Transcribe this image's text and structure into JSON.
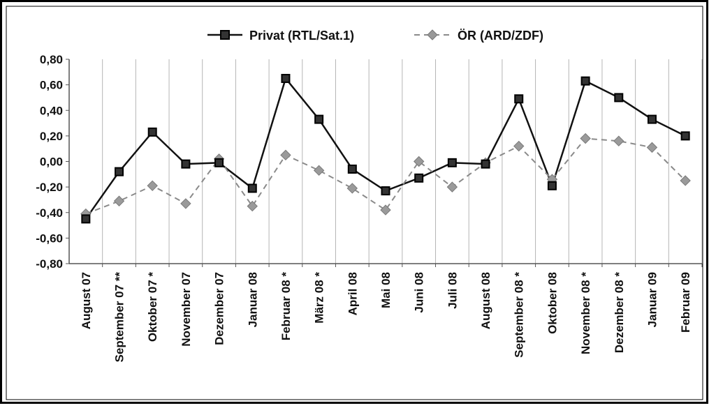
{
  "chart_data": {
    "type": "line",
    "categories": [
      "August 07",
      "September 07 **",
      "Oktober 07 *",
      "November 07",
      "Dezember 07",
      "Januar 08",
      "Februar 08 *",
      "März 08 *",
      "April 08",
      "Mai 08",
      "Juni 08",
      "Juli 08",
      "August 08",
      "September 08 *",
      "Oktober 08",
      "November 08 *",
      "Dezember 08 *",
      "Januar 09",
      "Februar 09"
    ],
    "series": [
      {
        "name": "Privat (RTL/Sat.1)",
        "color": "#111111",
        "style": "solid",
        "marker": "square",
        "values": [
          -0.45,
          -0.08,
          0.23,
          -0.02,
          -0.01,
          -0.21,
          0.65,
          0.33,
          -0.06,
          -0.23,
          -0.13,
          -0.01,
          -0.02,
          0.49,
          -0.19,
          0.63,
          0.5,
          0.33,
          0.2
        ]
      },
      {
        "name": "ÖR (ARD/ZDF)",
        "color": "#8a8a8a",
        "style": "dashed",
        "marker": "diamond",
        "values": [
          -0.41,
          -0.31,
          -0.19,
          -0.33,
          0.02,
          -0.35,
          0.05,
          -0.07,
          -0.21,
          -0.38,
          0.0,
          -0.2,
          -0.01,
          0.12,
          -0.14,
          0.18,
          0.16,
          0.11,
          -0.15
        ]
      }
    ],
    "yticks": [
      "0,80",
      "0,60",
      "0,40",
      "0,20",
      "0,00",
      "-0,20",
      "-0,40",
      "-0,60",
      "-0,80"
    ],
    "ylim": [
      -0.8,
      0.8
    ],
    "grid": "vertical",
    "legend": "top-center"
  }
}
